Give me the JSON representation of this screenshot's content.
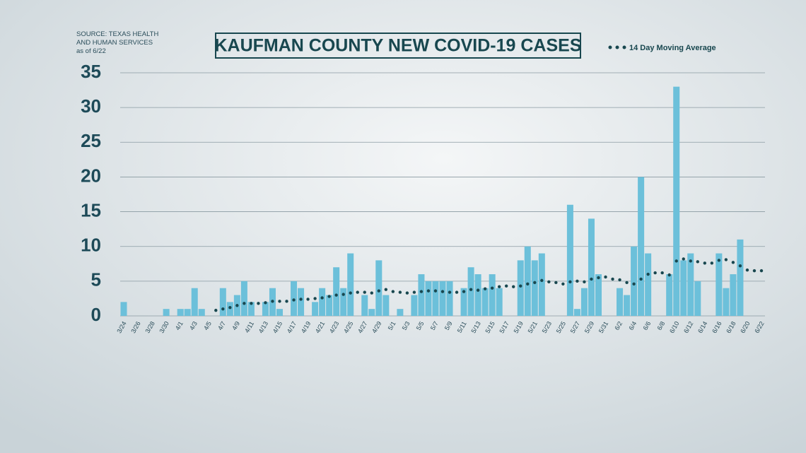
{
  "chart_data": {
    "type": "bar",
    "title": "KAUFMAN COUNTY NEW COVID-19 CASES",
    "source": [
      "SOURCE: TEXAS HEALTH",
      "AND HUMAN SERVICES",
      "as of 6/22"
    ],
    "categories": [
      "3/24",
      null,
      "3/26",
      null,
      "3/28",
      null,
      "3/30",
      null,
      "4/1",
      null,
      "4/3",
      null,
      "4/5",
      null,
      "4/7",
      null,
      "4/9",
      null,
      "4/11",
      null,
      "4/13",
      null,
      "4/15",
      null,
      "4/17",
      null,
      "4/19",
      null,
      "4/21",
      null,
      "4/23",
      null,
      "4/25",
      null,
      "4/27",
      null,
      "4/29",
      null,
      "5/1",
      null,
      "5/3",
      null,
      "5/5",
      null,
      "5/7",
      null,
      "5/9",
      null,
      "5/11",
      null,
      "5/13",
      null,
      "5/15",
      null,
      "5/17",
      null,
      "5/19",
      null,
      "5/21",
      null,
      "5/23",
      null,
      "5/25",
      null,
      "5/27",
      null,
      "5/29",
      null,
      "5/31",
      null,
      "6/2",
      null,
      "6/4",
      null,
      "6/6",
      null,
      "6/8",
      null,
      "6/10",
      null,
      "6/12",
      null,
      "6/14",
      null,
      "6/16",
      null,
      "6/18",
      null,
      "6/20",
      null,
      "6/22"
    ],
    "values": [
      2,
      0,
      0,
      0,
      0,
      0,
      1,
      0,
      1,
      1,
      4,
      1,
      0,
      0,
      4,
      2,
      3,
      5,
      2,
      0,
      2,
      4,
      1,
      0,
      5,
      4,
      0,
      2,
      4,
      3,
      7,
      4,
      9,
      0,
      3,
      1,
      8,
      3,
      0,
      1,
      0,
      3,
      6,
      5,
      5,
      5,
      5,
      0,
      4,
      7,
      6,
      4,
      6,
      4,
      0,
      0,
      8,
      10,
      8,
      9,
      0,
      0,
      0,
      16,
      1,
      4,
      14,
      6,
      0,
      0,
      4,
      3,
      10,
      20,
      9,
      0,
      0,
      6,
      33,
      8,
      9,
      5,
      0,
      0,
      9,
      4,
      6,
      11,
      0,
      0,
      0
    ],
    "color": "#6cc0da",
    "moving_average": {
      "name": "14 Day Moving Average",
      "color": "#18474f",
      "values": [
        null,
        null,
        null,
        null,
        null,
        null,
        null,
        null,
        null,
        null,
        null,
        null,
        null,
        0.8,
        1.0,
        1.2,
        1.5,
        1.8,
        1.8,
        1.8,
        1.9,
        2.1,
        2.1,
        2.1,
        2.3,
        2.4,
        2.4,
        2.5,
        2.6,
        2.8,
        3.0,
        3.1,
        3.3,
        3.4,
        3.4,
        3.3,
        3.6,
        3.8,
        3.5,
        3.4,
        3.3,
        3.4,
        3.5,
        3.6,
        3.6,
        3.5,
        3.4,
        3.4,
        3.5,
        3.8,
        3.7,
        3.9,
        4.0,
        4.2,
        4.3,
        4.2,
        4.3,
        4.6,
        4.8,
        5.1,
        4.9,
        4.8,
        4.6,
        4.9,
        5.0,
        4.9,
        5.3,
        5.5,
        5.6,
        5.3,
        5.2,
        4.8,
        4.6,
        5.3,
        6.0,
        6.2,
        6.2,
        5.9,
        7.9,
        8.2,
        7.9,
        7.8,
        7.6,
        7.6,
        8.0,
        8.1,
        7.7,
        7.2,
        6.6,
        6.5,
        6.5
      ]
    },
    "ylim": [
      0,
      35
    ],
    "yticks": [
      0,
      5,
      10,
      15,
      20,
      25,
      30,
      35
    ],
    "grid": true
  }
}
